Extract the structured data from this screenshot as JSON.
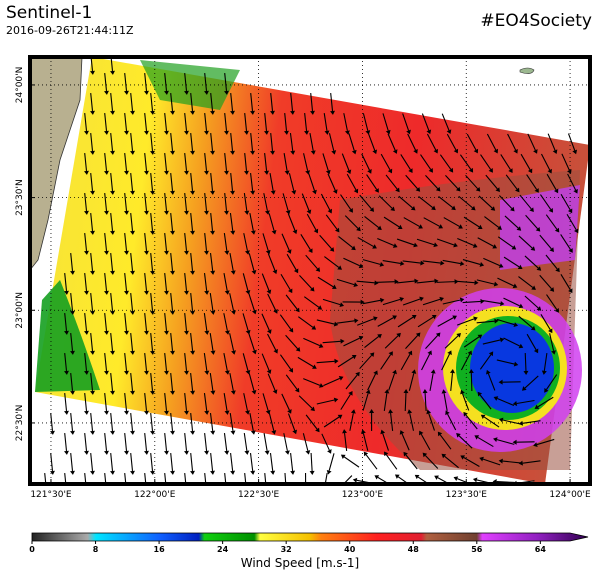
{
  "header": {
    "title": "Sentinel-1",
    "timestamp": "2016-09-26T21:44:11Z",
    "tag": "#EO4Society"
  },
  "map": {
    "xlim": [
      121.399,
      124.096
    ],
    "ylim": [
      22.229,
      24.124
    ],
    "xticks": [
      {
        "value": 121.5,
        "label": "121°30'E"
      },
      {
        "value": 122,
        "label": "122°00'E"
      },
      {
        "value": 122.5,
        "label": "122°30'E"
      },
      {
        "value": 123,
        "label": "123°00'E"
      },
      {
        "value": 123.5,
        "label": "123°30'E"
      },
      {
        "value": 124,
        "label": "124°00'E"
      }
    ],
    "yticks": [
      {
        "value": 22.5,
        "label": "22°30'N"
      },
      {
        "value": 23,
        "label": "23°00'N"
      },
      {
        "value": 23.5,
        "label": "23°30'N"
      },
      {
        "value": 24,
        "label": "24°00'N"
      }
    ]
  },
  "colorbar": {
    "label": "Wind Speed [m.s-1]",
    "range": [
      0,
      70
    ],
    "ticks": [
      0,
      8,
      16,
      24,
      32,
      40,
      48,
      56,
      64
    ]
  }
}
